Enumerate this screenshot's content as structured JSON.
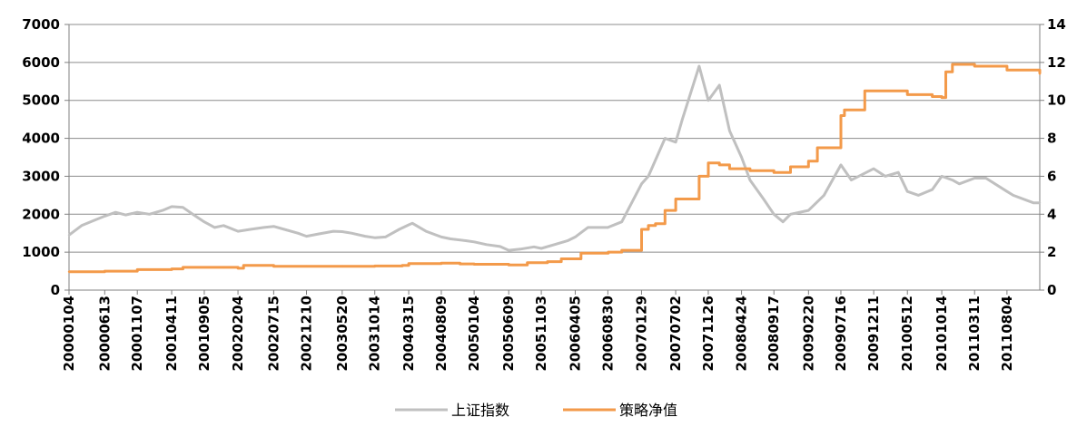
{
  "chart_data": {
    "type": "line",
    "title": "",
    "xlabel": "",
    "ylabel_left": "",
    "ylabel_right": "",
    "ylim_left": [
      0,
      7000
    ],
    "ylim_right": [
      0,
      14
    ],
    "yticks_left": [
      "0",
      "1000",
      "2000",
      "3000",
      "4000",
      "5000",
      "6000",
      "7000"
    ],
    "yticks_right": [
      "0",
      "2",
      "4",
      "6",
      "8",
      "10",
      "12",
      "14"
    ],
    "x_tick_labels": [
      "20000104",
      "20000613",
      "20001107",
      "20010411",
      "20010905",
      "20020204",
      "20020715",
      "20021210",
      "20030520",
      "20031014",
      "20040315",
      "20040809",
      "20050104",
      "20050609",
      "20051103",
      "20060405",
      "20060830",
      "20070129",
      "20070702",
      "20071126",
      "20080424",
      "20080917",
      "20090220",
      "20090716",
      "20091211",
      "20100512",
      "20101014",
      "20110311",
      "20110804"
    ],
    "x_range": [
      "20000104",
      "20111230"
    ],
    "grid": "horizontal",
    "legend_position": "bottom",
    "series": [
      {
        "name": "上证指数",
        "axis": "left",
        "color": "#c0c0c0",
        "x": [
          "20000104",
          "20000301",
          "20000501",
          "20000613",
          "20000801",
          "20000915",
          "20001107",
          "20010101",
          "20010301",
          "20010411",
          "20010601",
          "20010720",
          "20010905",
          "20011022",
          "20011201",
          "20020204",
          "20020401",
          "20020601",
          "20020715",
          "20020901",
          "20021101",
          "20021210",
          "20030201",
          "20030410",
          "20030520",
          "20030701",
          "20030901",
          "20031014",
          "20031201",
          "20040201",
          "20040315",
          "20040401",
          "20040601",
          "20040809",
          "20040920",
          "20041201",
          "20050104",
          "20050301",
          "20050501",
          "20050609",
          "20050801",
          "20051001",
          "20051103",
          "20060101",
          "20060301",
          "20060405",
          "20060601",
          "20060830",
          "20061101",
          "20070129",
          "20070301",
          "20070515",
          "20070702",
          "20070801",
          "20071016",
          "20071126",
          "20080115",
          "20080301",
          "20080424",
          "20080601",
          "20080801",
          "20080917",
          "20081028",
          "20081201",
          "20090220",
          "20090501",
          "20090716",
          "20090901",
          "20091211",
          "20100201",
          "20100401",
          "20100512",
          "20100701",
          "20100901",
          "20101014",
          "20101201",
          "20110101",
          "20110311",
          "20110501",
          "20110804",
          "20110901",
          "20111201",
          "20111230"
        ],
        "values": [
          1450,
          1700,
          1850,
          1950,
          2050,
          1980,
          2050,
          2000,
          2100,
          2200,
          2180,
          1980,
          1800,
          1650,
          1700,
          1550,
          1600,
          1650,
          1680,
          1600,
          1500,
          1420,
          1480,
          1550,
          1540,
          1500,
          1420,
          1380,
          1400,
          1600,
          1720,
          1760,
          1550,
          1400,
          1350,
          1300,
          1270,
          1200,
          1150,
          1050,
          1080,
          1140,
          1100,
          1200,
          1300,
          1400,
          1650,
          1650,
          1800,
          2800,
          3000,
          4000,
          3900,
          4500,
          5900,
          5000,
          5400,
          4200,
          3500,
          2900,
          2400,
          2000,
          1800,
          2000,
          2100,
          2500,
          3300,
          2900,
          3200,
          3000,
          3100,
          2600,
          2500,
          2650,
          3000,
          2900,
          2800,
          2950,
          2950,
          2600,
          2500,
          2300,
          2300
        ]
      },
      {
        "name": "策略净值",
        "axis": "right",
        "color": "#f39a4a",
        "x": [
          "20000104",
          "20000613",
          "20001107",
          "20010411",
          "20010601",
          "20011201",
          "20020204",
          "20020301",
          "20020715",
          "20021210",
          "20030520",
          "20031014",
          "20031101",
          "20040215",
          "20040315",
          "20040809",
          "20041101",
          "20050104",
          "20050609",
          "20050901",
          "20051103",
          "20051201",
          "20060201",
          "20060405",
          "20060501",
          "20060830",
          "20060901",
          "20061101",
          "20070129",
          "20070301",
          "20070402",
          "20070515",
          "20070702",
          "20070801",
          "20071016",
          "20071126",
          "20080115",
          "20080301",
          "20080424",
          "20080601",
          "20080917",
          "20081028",
          "20081201",
          "20090220",
          "20090401",
          "20090716",
          "20090801",
          "20091101",
          "20091211",
          "20100512",
          "20100901",
          "20101014",
          "20101101",
          "20101201",
          "20110311",
          "20110804",
          "20111201",
          "20111230"
        ],
        "values": [
          0.97,
          1.0,
          1.08,
          1.12,
          1.2,
          1.2,
          1.15,
          1.3,
          1.25,
          1.25,
          1.25,
          1.27,
          1.27,
          1.3,
          1.4,
          1.42,
          1.38,
          1.36,
          1.33,
          1.45,
          1.45,
          1.5,
          1.65,
          1.65,
          1.95,
          1.95,
          2.0,
          2.1,
          3.2,
          3.4,
          3.5,
          4.2,
          4.8,
          4.8,
          6.0,
          6.7,
          6.6,
          6.4,
          6.4,
          6.3,
          6.2,
          6.2,
          6.5,
          6.8,
          7.5,
          9.2,
          9.5,
          10.5,
          10.5,
          10.3,
          10.2,
          10.15,
          11.5,
          11.9,
          11.8,
          11.6,
          11.6,
          11.4
        ]
      }
    ]
  }
}
